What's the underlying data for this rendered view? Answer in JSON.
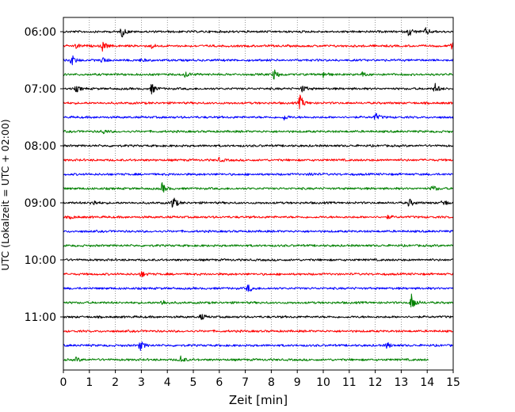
{
  "chart_data": {
    "type": "line",
    "title": "",
    "xlabel": "Zeit  [min]",
    "ylabel": "UTC (Lokalzeit = UTC + 02:00)",
    "xlim": [
      0,
      15
    ],
    "x_ticks": [
      "0",
      "1",
      "2",
      "3",
      "4",
      "5",
      "6",
      "7",
      "8",
      "9",
      "10",
      "11",
      "12",
      "13",
      "14",
      "15"
    ],
    "y_tick_labels": [
      "06:00",
      "07:00",
      "08:00",
      "09:00",
      "10:00",
      "11:00"
    ],
    "grid": "vertical dotted",
    "trace_colors": [
      "#000000",
      "#ff0000",
      "#0000ff",
      "#008000"
    ],
    "series": [
      {
        "start": "06:00",
        "color": "#000000",
        "x_end": 15,
        "events": [
          [
            2.25,
            1.0
          ],
          [
            13.3,
            0.9
          ],
          [
            13.95,
            0.7
          ]
        ]
      },
      {
        "start": "06:15",
        "color": "#ff0000",
        "x_end": 15,
        "events": [
          [
            0.5,
            0.5
          ],
          [
            1.5,
            1.0
          ],
          [
            3.4,
            0.4
          ],
          [
            14.95,
            1.0
          ]
        ]
      },
      {
        "start": "06:30",
        "color": "#0000ff",
        "x_end": 15,
        "events": [
          [
            0.3,
            1.2
          ],
          [
            1.5,
            0.6
          ],
          [
            3.0,
            0.3
          ]
        ]
      },
      {
        "start": "06:45",
        "color": "#008000",
        "x_end": 15,
        "events": [
          [
            4.7,
            0.6
          ],
          [
            8.1,
            1.0
          ],
          [
            10.0,
            0.6
          ],
          [
            11.5,
            0.4
          ]
        ]
      },
      {
        "start": "07:00",
        "color": "#000000",
        "x_end": 15,
        "events": [
          [
            0.5,
            0.6
          ],
          [
            3.4,
            1.0
          ],
          [
            9.2,
            0.7
          ],
          [
            14.3,
            1.0
          ]
        ]
      },
      {
        "start": "07:15",
        "color": "#ff0000",
        "x_end": 15,
        "events": [
          [
            9.1,
            1.5
          ]
        ]
      },
      {
        "start": "07:30",
        "color": "#0000ff",
        "x_end": 15,
        "events": [
          [
            8.5,
            0.5
          ],
          [
            12.0,
            0.8
          ]
        ]
      },
      {
        "start": "07:45",
        "color": "#008000",
        "x_end": 15,
        "events": [
          [
            1.5,
            0.5
          ]
        ]
      },
      {
        "start": "08:00",
        "color": "#000000",
        "x_end": 15,
        "events": []
      },
      {
        "start": "08:15",
        "color": "#ff0000",
        "x_end": 15,
        "events": [
          [
            6.0,
            0.4
          ]
        ]
      },
      {
        "start": "08:30",
        "color": "#0000ff",
        "x_end": 15,
        "events": [
          [
            9.5,
            0.3
          ]
        ]
      },
      {
        "start": "08:45",
        "color": "#008000",
        "x_end": 15,
        "events": [
          [
            3.8,
            1.0
          ],
          [
            14.2,
            0.7
          ]
        ]
      },
      {
        "start": "09:00",
        "color": "#000000",
        "x_end": 15,
        "events": [
          [
            1.1,
            0.8
          ],
          [
            4.2,
            1.5
          ],
          [
            13.3,
            0.8
          ],
          [
            14.6,
            0.8
          ]
        ]
      },
      {
        "start": "09:15",
        "color": "#ff0000",
        "x_end": 15,
        "events": [
          [
            0.3,
            0.3
          ],
          [
            12.5,
            0.3
          ]
        ]
      },
      {
        "start": "09:30",
        "color": "#0000ff",
        "x_end": 15,
        "events": []
      },
      {
        "start": "09:45",
        "color": "#008000",
        "x_end": 15,
        "events": []
      },
      {
        "start": "10:00",
        "color": "#000000",
        "x_end": 15,
        "events": []
      },
      {
        "start": "10:15",
        "color": "#ff0000",
        "x_end": 15,
        "events": [
          [
            3.0,
            0.6
          ]
        ]
      },
      {
        "start": "10:30",
        "color": "#0000ff",
        "x_end": 15,
        "events": [
          [
            7.1,
            0.8
          ]
        ]
      },
      {
        "start": "10:45",
        "color": "#008000",
        "x_end": 15,
        "events": [
          [
            3.8,
            0.6
          ],
          [
            13.4,
            1.8
          ]
        ]
      },
      {
        "start": "11:00",
        "color": "#000000",
        "x_end": 15,
        "events": [
          [
            5.3,
            0.6
          ]
        ]
      },
      {
        "start": "11:15",
        "color": "#ff0000",
        "x_end": 15,
        "events": []
      },
      {
        "start": "11:30",
        "color": "#0000ff",
        "x_end": 15,
        "events": [
          [
            2.95,
            1.0
          ],
          [
            12.45,
            0.6
          ]
        ]
      },
      {
        "start": "11:45",
        "color": "#008000",
        "x_end": 14.05,
        "events": [
          [
            4.5,
            0.8
          ],
          [
            0.5,
            0.4
          ]
        ]
      }
    ]
  }
}
